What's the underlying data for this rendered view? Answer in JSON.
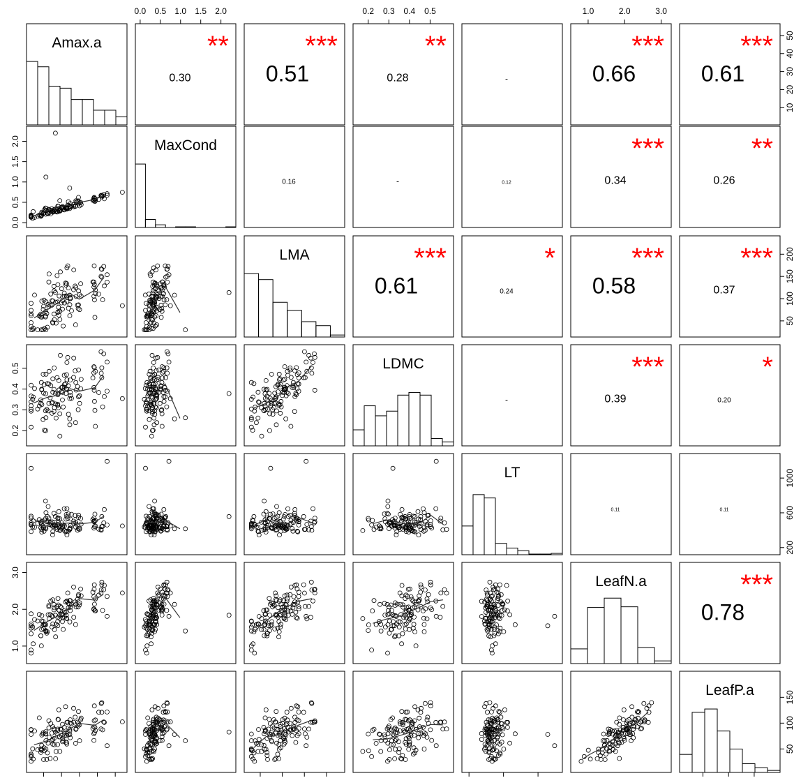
{
  "chart_data": {
    "type": "scatter-matrix",
    "variables": [
      {
        "name": "Amax.a",
        "min": 2,
        "max": 55,
        "ticks": [
          10,
          20,
          30,
          40,
          50
        ],
        "tick_labels": [
          "10",
          "20",
          "30",
          "40",
          "50"
        ]
      },
      {
        "name": "MaxCond",
        "min": -0.05,
        "max": 2.3,
        "ticks": [
          0,
          0.5,
          1,
          1.5,
          2
        ],
        "tick_labels": [
          "0.0",
          "0.5",
          "1.0",
          "1.5",
          "2.0"
        ]
      },
      {
        "name": "LMA",
        "min": 20,
        "max": 235,
        "ticks": [
          50,
          100,
          150,
          200
        ],
        "tick_labels": [
          "50",
          "100",
          "150",
          "200"
        ]
      },
      {
        "name": "LDMC",
        "min": 0.14,
        "max": 0.6,
        "ticks": [
          0.2,
          0.3,
          0.4,
          0.5
        ],
        "tick_labels": [
          "0.2",
          "0.3",
          "0.4",
          "0.5"
        ]
      },
      {
        "name": "LT",
        "min": 150,
        "max": 1250,
        "ticks": [
          200,
          600,
          1000
        ],
        "tick_labels": [
          "200",
          "600",
          "1000"
        ]
      },
      {
        "name": "LeafN.a",
        "min": 0.6,
        "max": 3.2,
        "ticks": [
          1,
          2,
          3
        ],
        "tick_labels": [
          "1.0",
          "2.0",
          "3.0"
        ]
      },
      {
        "name": "LeafP.a",
        "min": 10,
        "max": 195,
        "ticks": [
          50,
          100,
          150
        ],
        "tick_labels": [
          "50",
          "100",
          "150"
        ]
      }
    ],
    "correlations": [
      {
        "row": 0,
        "col": 1,
        "r": "0.30",
        "stars": "**"
      },
      {
        "row": 0,
        "col": 2,
        "r": "0.51",
        "stars": "***"
      },
      {
        "row": 0,
        "col": 3,
        "r": "0.28",
        "stars": "**"
      },
      {
        "row": 0,
        "col": 4,
        "r": "-",
        "stars": ""
      },
      {
        "row": 0,
        "col": 5,
        "r": "0.66",
        "stars": "***"
      },
      {
        "row": 0,
        "col": 6,
        "r": "0.61",
        "stars": "***"
      },
      {
        "row": 1,
        "col": 2,
        "r": "0.16",
        "stars": ""
      },
      {
        "row": 1,
        "col": 3,
        "r": "-",
        "stars": ""
      },
      {
        "row": 1,
        "col": 4,
        "r": "0.12",
        "stars": ""
      },
      {
        "row": 1,
        "col": 5,
        "r": "0.34",
        "stars": "***"
      },
      {
        "row": 1,
        "col": 6,
        "r": "0.26",
        "stars": "**"
      },
      {
        "row": 2,
        "col": 3,
        "r": "0.61",
        "stars": "***"
      },
      {
        "row": 2,
        "col": 4,
        "r": "0.24",
        "stars": "*"
      },
      {
        "row": 2,
        "col": 5,
        "r": "0.58",
        "stars": "***"
      },
      {
        "row": 2,
        "col": 6,
        "r": "0.37",
        "stars": "***"
      },
      {
        "row": 3,
        "col": 4,
        "r": "-",
        "stars": ""
      },
      {
        "row": 3,
        "col": 5,
        "r": "0.39",
        "stars": "***"
      },
      {
        "row": 3,
        "col": 6,
        "r": "0.20",
        "stars": "*"
      },
      {
        "row": 4,
        "col": 5,
        "r": "0.11",
        "stars": ""
      },
      {
        "row": 4,
        "col": 6,
        "r": "0.11",
        "stars": ""
      },
      {
        "row": 5,
        "col": 6,
        "r": "0.78",
        "stars": "***"
      }
    ],
    "histograms": [
      {
        "var": 0,
        "heights": [
          0.95,
          0.87,
          0.58,
          0.55,
          0.38,
          0.38,
          0.22,
          0.22,
          0.12
        ]
      },
      {
        "var": 1,
        "heights": [
          0.95,
          0.12,
          0.04,
          0,
          0.01,
          0.01,
          0,
          0,
          0,
          0.01
        ]
      },
      {
        "var": 2,
        "heights": [
          0.95,
          0.86,
          0.52,
          0.4,
          0.23,
          0.17,
          0.03
        ]
      },
      {
        "var": 3,
        "heights": [
          0.24,
          0.6,
          0.45,
          0.52,
          0.76,
          0.8,
          0.76,
          0.11,
          0.06
        ]
      },
      {
        "var": 4,
        "heights": [
          0.43,
          0.9,
          0.85,
          0.17,
          0.1,
          0.06,
          0.01,
          0.01,
          0.02
        ]
      },
      {
        "var": 5,
        "heights": [
          0.22,
          0.84,
          0.98,
          0.85,
          0.24,
          0.04
        ]
      },
      {
        "var": 6,
        "heights": [
          0.27,
          0.9,
          0.95,
          0.62,
          0.35,
          0.13,
          0.07,
          0.03
        ]
      }
    ],
    "star_color": "#ff0000",
    "point_color": "#000000",
    "smoother_color": "#333333"
  }
}
